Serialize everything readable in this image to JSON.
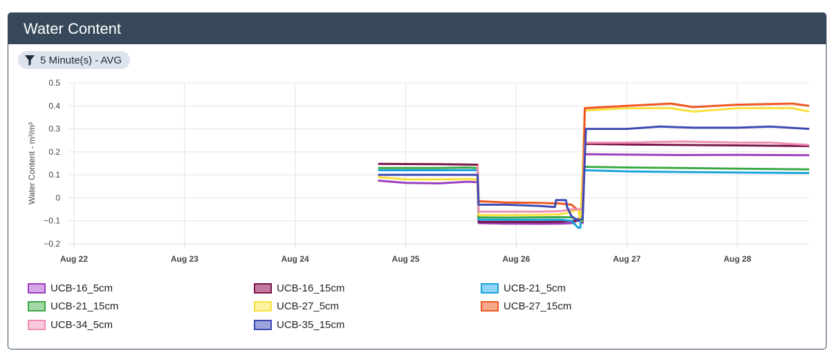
{
  "panel": {
    "title": "Water Content",
    "filter_label": "5 Minute(s) - AVG"
  },
  "chart_data": {
    "type": "line",
    "title": "",
    "xlabel": "",
    "ylabel": "Water Content - m³/m³",
    "ylim": [
      -0.2,
      0.5
    ],
    "xlim": [
      -0.05,
      6.65
    ],
    "yticks": [
      -0.2,
      -0.1,
      0,
      0.1,
      0.2,
      0.3,
      0.4,
      0.5
    ],
    "ytick_labels": [
      "−0.2",
      "−0.1",
      "0",
      "0.1",
      "0.2",
      "0.3",
      "0.4",
      "0.5"
    ],
    "xticks": [
      0,
      1,
      2,
      3,
      4,
      5,
      6
    ],
    "xtick_labels": [
      "Aug 22",
      "Aug 23",
      "Aug 24",
      "Aug 25",
      "Aug 26",
      "Aug 27",
      "Aug 28"
    ],
    "grid": true,
    "legend_position": "bottom",
    "series": [
      {
        "name": "UCB-16_5cm",
        "color": "#9b3fbf",
        "fill": "#d7a6e6",
        "x": [
          2.75,
          3.0,
          3.3,
          3.55,
          3.65,
          3.66,
          3.9,
          4.2,
          4.4,
          4.52,
          4.56,
          4.6,
          4.62,
          5.0,
          5.5,
          6.0,
          6.65
        ],
        "y": [
          0.075,
          0.065,
          0.063,
          0.07,
          0.068,
          -0.11,
          -0.112,
          -0.113,
          -0.112,
          -0.11,
          -0.09,
          -0.11,
          0.19,
          0.188,
          0.186,
          0.187,
          0.185
        ]
      },
      {
        "name": "UCB-16_15cm",
        "color": "#7a1548",
        "fill": "#c27a9f",
        "x": [
          2.75,
          3.0,
          3.3,
          3.55,
          3.65,
          3.66,
          3.9,
          4.2,
          4.4,
          4.5,
          4.55,
          4.6,
          4.61,
          5.0,
          5.5,
          6.0,
          6.65
        ],
        "y": [
          0.148,
          0.147,
          0.146,
          0.145,
          0.144,
          -0.105,
          -0.105,
          -0.105,
          -0.104,
          -0.1,
          -0.1,
          -0.1,
          0.235,
          0.232,
          0.23,
          0.228,
          0.225
        ]
      },
      {
        "name": "UCB-21_5cm",
        "color": "#1aa3dd",
        "fill": "#8fd4f3",
        "x": [
          2.75,
          3.0,
          3.3,
          3.55,
          3.65,
          3.66,
          3.9,
          4.2,
          4.4,
          4.5,
          4.56,
          4.58,
          4.6,
          4.62,
          5.0,
          5.5,
          6.0,
          6.65
        ],
        "y": [
          0.12,
          0.12,
          0.12,
          0.121,
          0.12,
          -0.095,
          -0.096,
          -0.096,
          -0.095,
          -0.1,
          -0.13,
          -0.13,
          0.07,
          0.12,
          0.115,
          0.112,
          0.11,
          0.108
        ]
      },
      {
        "name": "UCB-21_15cm",
        "color": "#3aa845",
        "fill": "#a3d8a6",
        "x": [
          2.75,
          3.0,
          3.3,
          3.55,
          3.65,
          3.66,
          3.9,
          4.2,
          4.4,
          4.5,
          4.58,
          4.6,
          4.61,
          5.0,
          5.5,
          6.0,
          6.65
        ],
        "y": [
          0.13,
          0.13,
          0.13,
          0.132,
          0.13,
          -0.085,
          -0.086,
          -0.085,
          -0.084,
          -0.085,
          -0.1,
          -0.1,
          0.135,
          0.132,
          0.13,
          0.127,
          0.124
        ]
      },
      {
        "name": "UCB-27_5cm",
        "color": "#f7e03a",
        "fill": "#fcf2a0",
        "x": [
          2.75,
          3.0,
          3.3,
          3.55,
          3.65,
          3.66,
          3.9,
          4.2,
          4.4,
          4.5,
          4.56,
          4.58,
          4.6,
          4.62,
          5.0,
          5.4,
          5.6,
          6.0,
          6.5,
          6.65
        ],
        "y": [
          0.09,
          0.08,
          0.08,
          0.082,
          0.08,
          -0.075,
          -0.075,
          -0.074,
          -0.072,
          -0.06,
          -0.05,
          -0.1,
          0.1,
          0.38,
          0.39,
          0.39,
          0.375,
          0.39,
          0.39,
          0.375
        ]
      },
      {
        "name": "UCB-27_15cm",
        "color": "#f0551f",
        "fill": "#f7a88b",
        "x": [
          3.65,
          3.66,
          3.9,
          4.2,
          4.4,
          4.5,
          4.55,
          4.6,
          4.62,
          5.0,
          5.4,
          5.6,
          6.0,
          6.5,
          6.65
        ],
        "y": [
          0.145,
          -0.015,
          -0.02,
          -0.022,
          -0.025,
          -0.03,
          -0.05,
          -0.05,
          0.39,
          0.4,
          0.41,
          0.395,
          0.405,
          0.41,
          0.4
        ]
      },
      {
        "name": "UCB-34_5cm",
        "color": "#ef8fb5",
        "fill": "#f8c9db",
        "x": [
          3.65,
          3.66,
          3.9,
          4.2,
          4.4,
          4.5,
          4.55,
          4.6,
          4.62,
          5.0,
          5.5,
          6.0,
          6.3,
          6.65
        ],
        "y": [
          0.14,
          -0.06,
          -0.06,
          -0.06,
          -0.058,
          -0.05,
          -0.05,
          -0.05,
          0.24,
          0.24,
          0.245,
          0.24,
          0.24,
          0.23
        ]
      },
      {
        "name": "UCB-35_15cm",
        "color": "#3d49b4",
        "fill": "#9ea4dc",
        "x": [
          2.75,
          3.0,
          3.3,
          3.55,
          3.65,
          3.66,
          3.9,
          4.2,
          4.35,
          4.36,
          4.45,
          4.46,
          4.5,
          4.56,
          4.6,
          4.63,
          5.0,
          5.3,
          5.6,
          6.0,
          6.3,
          6.65
        ],
        "y": [
          0.1,
          0.1,
          0.1,
          0.1,
          0.1,
          -0.03,
          -0.03,
          -0.035,
          -0.04,
          -0.01,
          -0.01,
          -0.04,
          -0.08,
          -0.1,
          -0.09,
          0.3,
          0.3,
          0.31,
          0.305,
          0.305,
          0.31,
          0.3
        ]
      }
    ]
  }
}
